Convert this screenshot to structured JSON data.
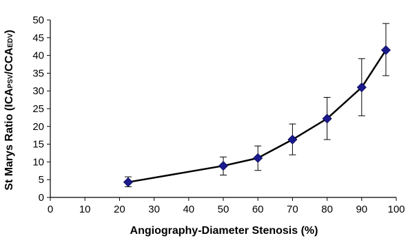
{
  "chart_data": {
    "type": "line",
    "title": "",
    "xlabel": "Angiography-Diameter Stenosis (%)",
    "ylabel": {
      "prefix": "St Marys Ratio (ICA",
      "sub1": "PSV",
      "middle": "/CCA",
      "sub2": "EDV",
      "suffix": ")"
    },
    "xlim": [
      0,
      100
    ],
    "ylim": [
      0,
      50
    ],
    "xticks": [
      "0",
      "10",
      "20",
      "30",
      "40",
      "50",
      "60",
      "70",
      "80",
      "90",
      "100"
    ],
    "yticks": [
      "0",
      "5",
      "10",
      "15",
      "20",
      "25",
      "30",
      "35",
      "40",
      "45",
      "50"
    ],
    "grid": false,
    "legend": "none",
    "marker": "diamond",
    "marker_color": "#1a1a8c",
    "line_color": "#000000",
    "series": [
      {
        "x": [
          22.5,
          50,
          60,
          70,
          80,
          90,
          97
        ],
        "y": [
          4.3,
          8.9,
          11.1,
          16.3,
          22.2,
          31.0,
          41.5
        ],
        "err_low": [
          3.0,
          6.3,
          7.6,
          12.0,
          16.3,
          23.0,
          34.3
        ],
        "err_high": [
          5.8,
          11.4,
          14.5,
          20.7,
          28.2,
          39.1,
          49.0
        ]
      }
    ]
  }
}
